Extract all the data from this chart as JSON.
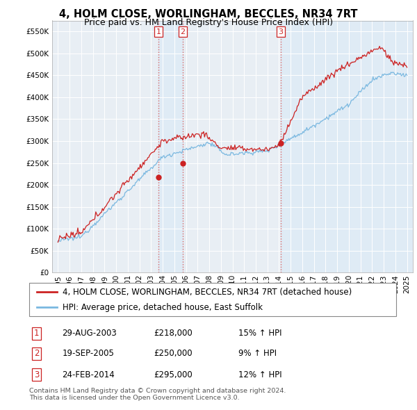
{
  "title": "4, HOLM CLOSE, WORLINGHAM, BECCLES, NR34 7RT",
  "subtitle": "Price paid vs. HM Land Registry's House Price Index (HPI)",
  "xlim": [
    1994.5,
    2025.5
  ],
  "ylim": [
    0,
    575000
  ],
  "yticks": [
    0,
    50000,
    100000,
    150000,
    200000,
    250000,
    300000,
    350000,
    400000,
    450000,
    500000,
    550000
  ],
  "ytick_labels": [
    "£0",
    "£50K",
    "£100K",
    "£150K",
    "£200K",
    "£250K",
    "£300K",
    "£350K",
    "£400K",
    "£450K",
    "£500K",
    "£550K"
  ],
  "xticks": [
    1995,
    1996,
    1997,
    1998,
    1999,
    2000,
    2001,
    2002,
    2003,
    2004,
    2005,
    2006,
    2007,
    2008,
    2009,
    2010,
    2011,
    2012,
    2013,
    2014,
    2015,
    2016,
    2017,
    2018,
    2019,
    2020,
    2021,
    2022,
    2023,
    2024,
    2025
  ],
  "sale_dates": [
    2003.66,
    2005.72,
    2014.15
  ],
  "sale_prices": [
    218000,
    250000,
    295000
  ],
  "sale_labels": [
    "1",
    "2",
    "3"
  ],
  "vline_color": "#d9534f",
  "vline_style": ":",
  "shade_color": "#daeaf7",
  "shade_alpha": 0.6,
  "hpi_color": "#7ab8e0",
  "price_color": "#cc2222",
  "dot_color": "#cc2222",
  "background_color": "#e8eef4",
  "grid_color": "#ffffff",
  "legend1_label": "4, HOLM CLOSE, WORLINGHAM, BECCLES, NR34 7RT (detached house)",
  "legend2_label": "HPI: Average price, detached house, East Suffolk",
  "table_rows": [
    [
      "1",
      "29-AUG-2003",
      "£218,000",
      "15% ↑ HPI"
    ],
    [
      "2",
      "19-SEP-2005",
      "£250,000",
      "9% ↑ HPI"
    ],
    [
      "3",
      "24-FEB-2014",
      "£295,000",
      "12% ↑ HPI"
    ]
  ],
  "footnote": "Contains HM Land Registry data © Crown copyright and database right 2024.\nThis data is licensed under the Open Government Licence v3.0.",
  "title_fontsize": 10.5,
  "subtitle_fontsize": 9,
  "tick_fontsize": 7.5,
  "legend_fontsize": 8.5,
  "table_fontsize": 8.5
}
